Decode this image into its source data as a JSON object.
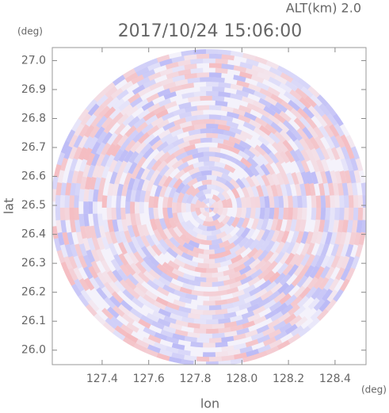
{
  "chart_data": {
    "type": "radar-field",
    "subtitle": "ALT(km) 2.0",
    "title": "2017/10/24 15:06:00",
    "x_label": "lon",
    "y_label": "lat",
    "x_unit": "(deg)",
    "y_unit": "(deg)",
    "xlim": [
      127.186,
      128.533
    ],
    "ylim": [
      25.95,
      27.045
    ],
    "xticks": [
      127.4,
      127.6,
      127.8,
      {
        "value": 128,
        "label": "128.0"
      },
      128.2,
      128.4
    ],
    "yticks": [
      {
        "value": 26,
        "label": "26.0"
      },
      26.1,
      26.2,
      26.3,
      26.4,
      26.5,
      26.6,
      26.7,
      26.8,
      26.9,
      {
        "value": 27,
        "label": "27.0"
      }
    ]
  }
}
